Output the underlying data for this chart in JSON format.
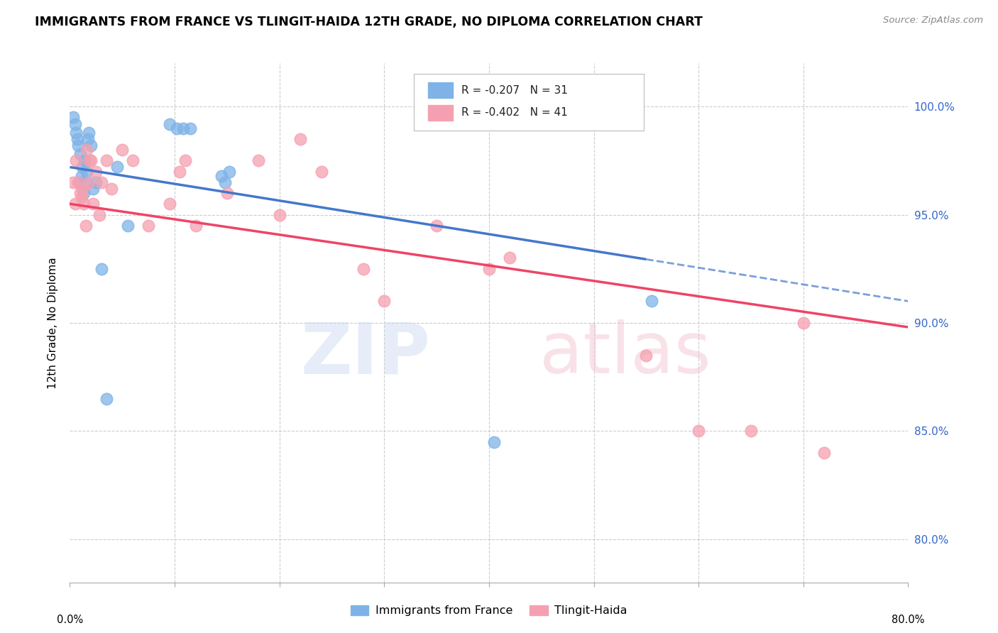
{
  "title": "IMMIGRANTS FROM FRANCE VS TLINGIT-HAIDA 12TH GRADE, NO DIPLOMA CORRELATION CHART",
  "source": "Source: ZipAtlas.com",
  "ylabel": "12th Grade, No Diploma",
  "yaxis_ticks": [
    80.0,
    85.0,
    90.0,
    95.0,
    100.0
  ],
  "xaxis_range": [
    0.0,
    80.0
  ],
  "yaxis_range": [
    78.0,
    102.0
  ],
  "legend_blue_r": "R = -0.207",
  "legend_blue_n": "N = 31",
  "legend_pink_r": "R = -0.402",
  "legend_pink_n": "N = 41",
  "legend_label_blue": "Immigrants from France",
  "legend_label_pink": "Tlingit-Haida",
  "blue_color": "#7fb3e8",
  "pink_color": "#f5a0b0",
  "blue_line_color": "#4477cc",
  "pink_line_color": "#ee4466",
  "blue_line_x0": 0.0,
  "blue_line_y0": 97.2,
  "blue_line_x1": 80.0,
  "blue_line_y1": 91.0,
  "blue_line_solid_end": 55.0,
  "pink_line_x0": 0.0,
  "pink_line_y0": 95.5,
  "pink_line_x1": 80.0,
  "pink_line_y1": 89.8,
  "blue_scatter_x": [
    0.3,
    0.5,
    0.6,
    0.7,
    0.8,
    0.9,
    1.0,
    1.1,
    1.2,
    1.3,
    1.4,
    1.5,
    1.6,
    1.7,
    1.8,
    2.0,
    2.2,
    2.5,
    3.0,
    3.5,
    4.5,
    5.5,
    9.5,
    10.2,
    10.8,
    11.5,
    14.5,
    14.8,
    15.2,
    40.5,
    55.5
  ],
  "blue_scatter_y": [
    99.5,
    99.2,
    98.8,
    98.5,
    98.2,
    96.5,
    97.8,
    96.8,
    97.2,
    96.0,
    97.5,
    96.5,
    97.0,
    98.5,
    98.8,
    98.2,
    96.2,
    96.5,
    92.5,
    86.5,
    97.2,
    94.5,
    99.2,
    99.0,
    99.0,
    99.0,
    96.8,
    96.5,
    97.0,
    84.5,
    91.0
  ],
  "pink_scatter_x": [
    0.3,
    0.5,
    0.6,
    0.8,
    1.0,
    1.1,
    1.2,
    1.3,
    1.5,
    1.6,
    1.8,
    1.9,
    2.0,
    2.2,
    2.5,
    2.8,
    3.0,
    3.5,
    4.0,
    5.0,
    6.0,
    7.5,
    9.5,
    10.5,
    11.0,
    12.0,
    15.0,
    18.0,
    20.0,
    22.0,
    24.0,
    28.0,
    30.0,
    35.0,
    40.0,
    42.0,
    55.0,
    60.0,
    65.0,
    70.0,
    72.0
  ],
  "pink_scatter_y": [
    96.5,
    95.5,
    97.5,
    96.5,
    96.0,
    95.8,
    96.2,
    95.5,
    94.5,
    98.0,
    96.5,
    97.5,
    97.5,
    95.5,
    97.0,
    95.0,
    96.5,
    97.5,
    96.2,
    98.0,
    97.5,
    94.5,
    95.5,
    97.0,
    97.5,
    94.5,
    96.0,
    97.5,
    95.0,
    98.5,
    97.0,
    92.5,
    91.0,
    94.5,
    92.5,
    93.0,
    88.5,
    85.0,
    85.0,
    90.0,
    84.0
  ]
}
